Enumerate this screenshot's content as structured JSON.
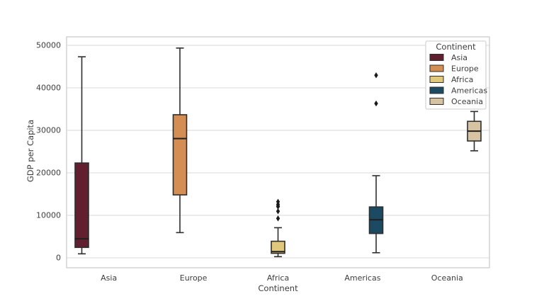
{
  "chart_data": {
    "type": "boxplot",
    "title": "",
    "xlabel": "Continent",
    "ylabel": "GDP per Capita",
    "categories": [
      "Asia",
      "Europe",
      "Africa",
      "Americas",
      "Oceania"
    ],
    "x_tick_labels": [
      "Asia",
      "Europe",
      "Africa",
      "Americas",
      "Oceania"
    ],
    "y_ticks": [
      0,
      10000,
      20000,
      30000,
      40000,
      50000
    ],
    "y_tick_labels": [
      "0",
      "10000",
      "20000",
      "30000",
      "40000",
      "50000"
    ],
    "ylim": [
      -2400,
      52000
    ],
    "grid": "horizontal",
    "dodge": true,
    "legend": {
      "title": "Continent",
      "position": "upper right",
      "entries": [
        {
          "label": "Asia",
          "color": "#621f30"
        },
        {
          "label": "Europe",
          "color": "#d48d52"
        },
        {
          "label": "Africa",
          "color": "#e0c77b"
        },
        {
          "label": "Americas",
          "color": "#1d4a63"
        },
        {
          "label": "Oceania",
          "color": "#d7c3a1"
        }
      ]
    },
    "series": [
      {
        "name": "Asia",
        "color": "#621f30",
        "whisker_low": 944,
        "q1": 2452,
        "median": 4471,
        "q3": 22316,
        "whisker_high": 47306,
        "outliers": []
      },
      {
        "name": "Europe",
        "color": "#d48d52",
        "whisker_low": 5937,
        "q1": 14811,
        "median": 28054,
        "q3": 33674,
        "whisker_high": 49357,
        "outliers": []
      },
      {
        "name": "Africa",
        "color": "#e0c77b",
        "whisker_low": 278,
        "q1": 1063,
        "median": 1452,
        "q3": 3900,
        "whisker_high": 7093,
        "outliers": [
          9270,
          10957,
          12057,
          12154,
          12570,
          13206
        ]
      },
      {
        "name": "Americas",
        "color": "#1d4a63",
        "whisker_low": 1202,
        "q1": 5728,
        "median": 8948,
        "q3": 11977,
        "whisker_high": 19329,
        "outliers": [
          36319,
          42952
        ]
      },
      {
        "name": "Oceania",
        "color": "#d7c3a1",
        "whisker_low": 25185,
        "q1": 27498,
        "median": 29810,
        "q3": 32122,
        "whisker_high": 34435,
        "outliers": []
      }
    ]
  },
  "style": {
    "background": "#ffffff",
    "grid_color": "#d9d9d9",
    "spine_color": "#c9c9c9",
    "box_edge_color": "#2e2e2e",
    "median_color": "#1f1f1f",
    "outlier_color": "#1a1a1a",
    "text_color": "#3d3d3d"
  }
}
